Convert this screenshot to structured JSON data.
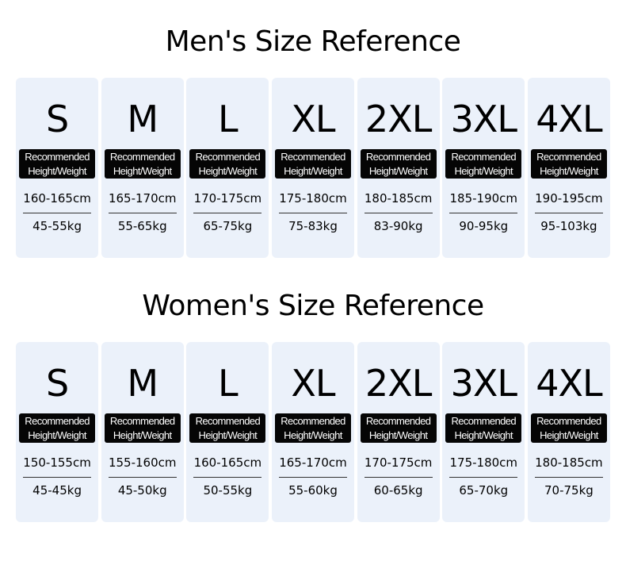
{
  "badge_line1": "Recommended",
  "badge_line2": "Height/Weight",
  "men": {
    "title": "Men's Size Reference",
    "sizes": [
      {
        "size": "S",
        "height": "160-165cm",
        "weight": "45-55kg"
      },
      {
        "size": "M",
        "height": "165-170cm",
        "weight": "55-65kg"
      },
      {
        "size": "L",
        "height": "170-175cm",
        "weight": "65-75kg"
      },
      {
        "size": "XL",
        "height": "175-180cm",
        "weight": "75-83kg"
      },
      {
        "size": "2XL",
        "height": "180-185cm",
        "weight": "83-90kg"
      },
      {
        "size": "3XL",
        "height": "185-190cm",
        "weight": "90-95kg"
      },
      {
        "size": "4XL",
        "height": "190-195cm",
        "weight": "95-103kg"
      }
    ]
  },
  "women": {
    "title": "Women's Size Reference",
    "sizes": [
      {
        "size": "S",
        "height": "150-155cm",
        "weight": "45-45kg"
      },
      {
        "size": "M",
        "height": "155-160cm",
        "weight": "45-50kg"
      },
      {
        "size": "L",
        "height": "160-165cm",
        "weight": "50-55kg"
      },
      {
        "size": "XL",
        "height": "165-170cm",
        "weight": "55-60kg"
      },
      {
        "size": "2XL",
        "height": "170-175cm",
        "weight": "60-65kg"
      },
      {
        "size": "3XL",
        "height": "175-180cm",
        "weight": "65-70kg"
      },
      {
        "size": "4XL",
        "height": "180-185cm",
        "weight": "70-75kg"
      }
    ]
  },
  "colors": {
    "card": "#ebf1fa",
    "badge": "#050505"
  }
}
